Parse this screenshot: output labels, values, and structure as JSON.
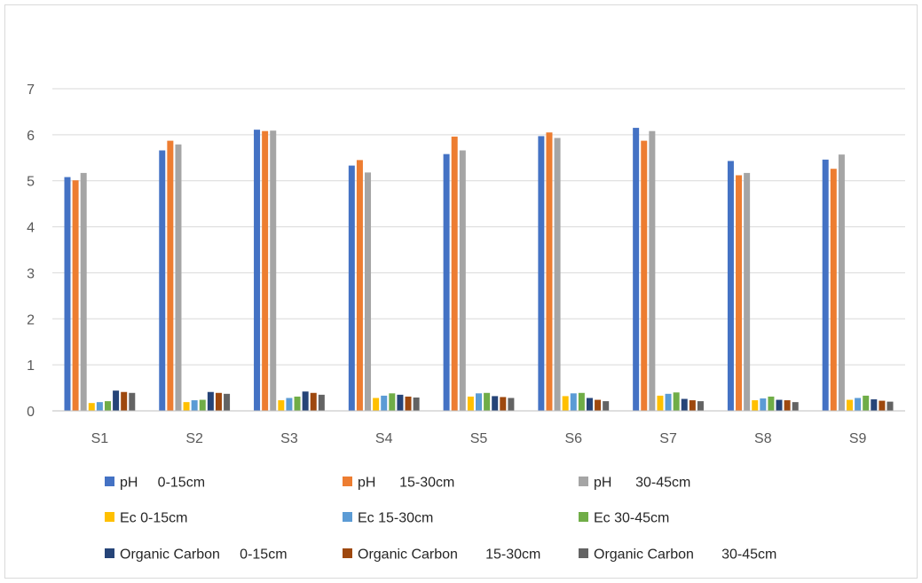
{
  "chart_data": {
    "type": "bar",
    "title": "",
    "xlabel": "",
    "ylabel": "",
    "ylim": [
      0,
      7
    ],
    "yticks": [
      0,
      1,
      2,
      3,
      4,
      5,
      6,
      7
    ],
    "grid": true,
    "legend_position": "bottom",
    "categories": [
      "S1",
      "S2",
      "S3",
      "S4",
      "S5",
      "S6",
      "S7",
      "S8",
      "S9"
    ],
    "series": [
      {
        "name": "pH     0-15cm",
        "color": "#4472c4",
        "values": [
          5.08,
          5.66,
          6.11,
          5.33,
          5.58,
          5.97,
          6.15,
          5.43,
          5.46
        ]
      },
      {
        "name": "pH      15-30cm",
        "color": "#ed7d31",
        "values": [
          5.01,
          5.87,
          6.08,
          5.45,
          5.96,
          6.05,
          5.87,
          5.12,
          5.26
        ]
      },
      {
        "name": "pH      30-45cm",
        "color": "#a5a5a5",
        "values": [
          5.17,
          5.79,
          6.09,
          5.18,
          5.66,
          5.93,
          6.08,
          5.17,
          5.57
        ]
      },
      {
        "name": "Ec 0-15cm",
        "color": "#ffc000",
        "values": [
          0.17,
          0.19,
          0.23,
          0.28,
          0.31,
          0.32,
          0.33,
          0.23,
          0.24
        ]
      },
      {
        "name": "Ec 15-30cm",
        "color": "#5b9bd5",
        "values": [
          0.19,
          0.23,
          0.28,
          0.33,
          0.38,
          0.38,
          0.37,
          0.27,
          0.28
        ]
      },
      {
        "name": "Ec 30-45cm",
        "color": "#70ad47",
        "values": [
          0.21,
          0.24,
          0.31,
          0.38,
          0.39,
          0.39,
          0.4,
          0.31,
          0.33
        ]
      },
      {
        "name": "Organic Carbon     0-15cm",
        "color": "#264478",
        "values": [
          0.44,
          0.41,
          0.42,
          0.35,
          0.32,
          0.28,
          0.26,
          0.24,
          0.25
        ]
      },
      {
        "name": "Organic Carbon       15-30cm",
        "color": "#9e480e",
        "values": [
          0.41,
          0.39,
          0.39,
          0.31,
          0.3,
          0.24,
          0.23,
          0.23,
          0.22
        ]
      },
      {
        "name": "Organic Carbon       30-45cm",
        "color": "#636363",
        "values": [
          0.39,
          0.37,
          0.35,
          0.29,
          0.28,
          0.21,
          0.21,
          0.19,
          0.2
        ]
      }
    ]
  }
}
